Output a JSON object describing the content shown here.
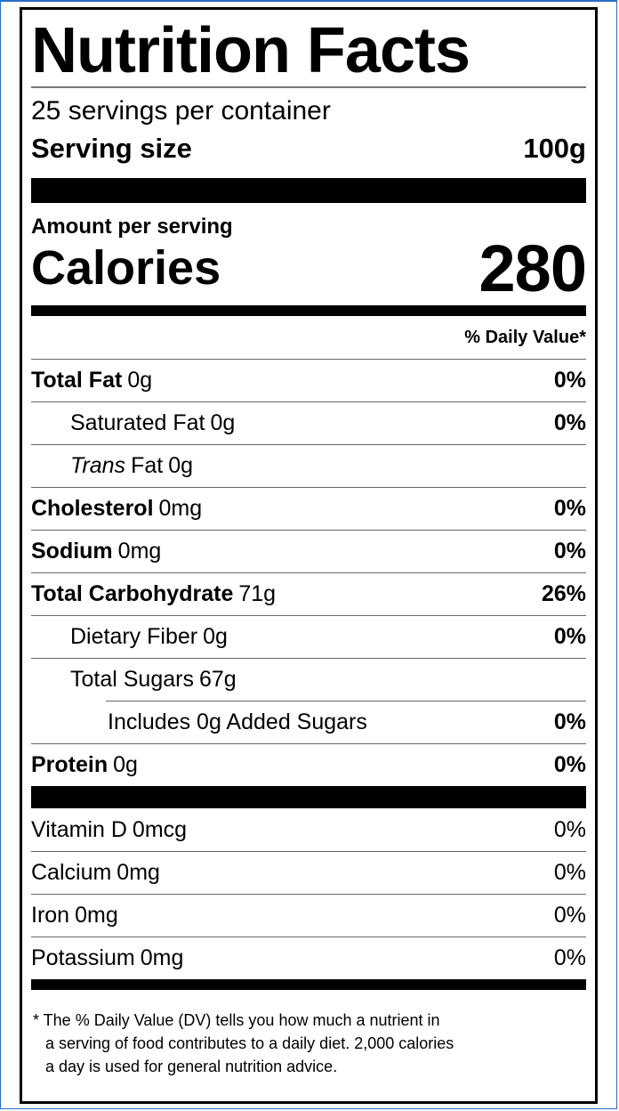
{
  "header": {
    "title": "Nutrition Facts",
    "servings": "25 servings per container",
    "serving_size_label": "Serving size",
    "serving_size": "100g"
  },
  "calories": {
    "heading": "Amount per serving",
    "label": "Calories",
    "value": "280"
  },
  "dv_heading": "% Daily Value*",
  "nutrients": [
    {
      "name": "Total Fat",
      "amount": "0g",
      "dv": "0%"
    },
    {
      "name": "Saturated Fat",
      "amount": "0g",
      "dv": "0%"
    },
    {
      "name": "Trans",
      "name_rest": "Fat",
      "amount": "0g"
    },
    {
      "name": "Cholesterol",
      "amount": "0mg",
      "dv": "0%"
    },
    {
      "name": "Sodium",
      "amount": "0mg",
      "dv": "0%"
    },
    {
      "name": "Total Carbohydrate",
      "amount": "71g",
      "dv": "26%"
    },
    {
      "name": "Dietary Fiber",
      "amount": "0g",
      "dv": "0%"
    },
    {
      "name": "Total Sugars",
      "amount": "67g"
    },
    {
      "name": "Includes 0g Added Sugars",
      "dv": "0%"
    },
    {
      "name": "Protein",
      "amount": "0g",
      "dv": "0%"
    }
  ],
  "vitamins": [
    {
      "name": "Vitamin D",
      "amount": "0mcg",
      "dv": "0%"
    },
    {
      "name": "Calcium",
      "amount": "0mg",
      "dv": "0%"
    },
    {
      "name": "Iron",
      "amount": "0mg",
      "dv": "0%"
    },
    {
      "name": "Potassium",
      "amount": "0mg",
      "dv": "0%"
    }
  ],
  "footnote": [
    "* The % Daily Value (DV) tells you how much a nutrient in",
    "a serving of food contributes to a daily diet. 2,000 calories",
    "a day is used for general nutrition advice."
  ]
}
